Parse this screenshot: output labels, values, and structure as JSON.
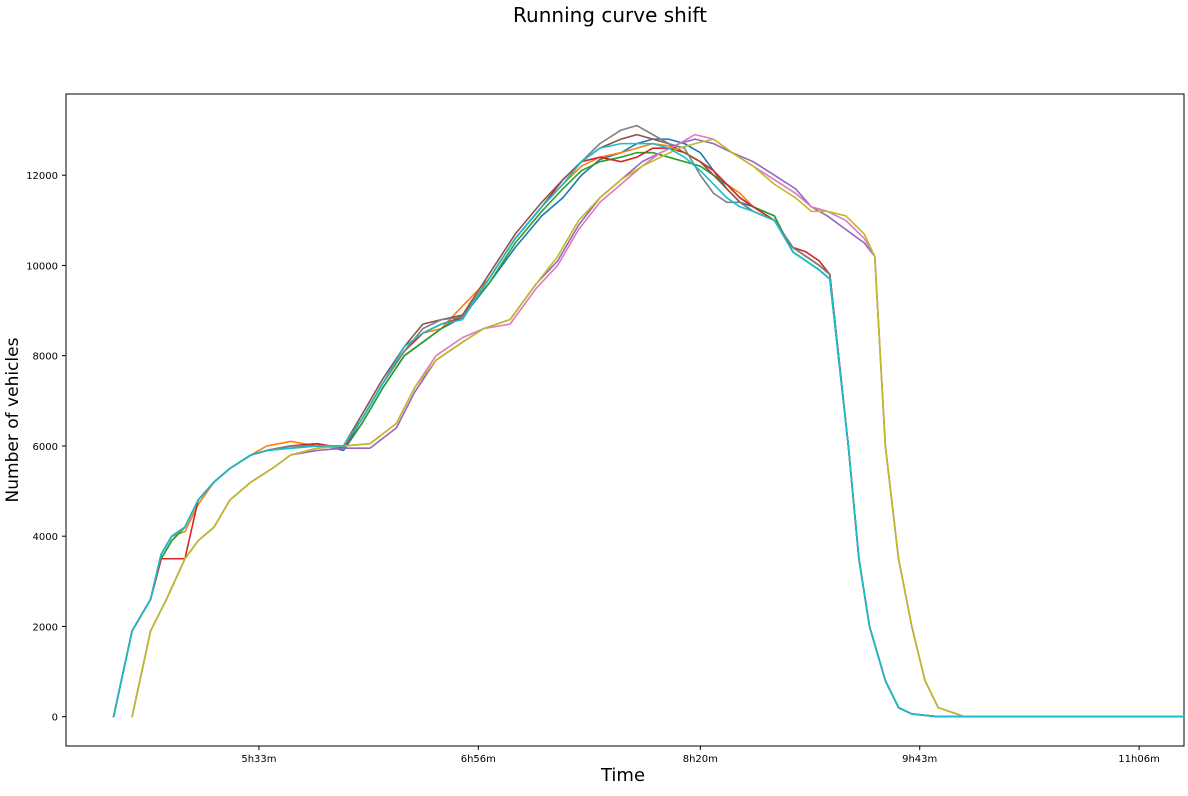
{
  "chart_data": {
    "type": "line",
    "title": "Running curve shift",
    "xlabel": "Time",
    "ylabel": "Number of vehicles",
    "x_ticks": [
      "5h33m",
      "6h56m",
      "8h20m",
      "9h43m",
      "11h06m"
    ],
    "x_tick_minutes": [
      333,
      416,
      500,
      583,
      666
    ],
    "x_range_minutes": [
      260,
      683
    ],
    "y_ticks": [
      0,
      2000,
      4000,
      6000,
      8000,
      10000,
      12000
    ],
    "ylim": [
      -650,
      13800
    ],
    "grid": false,
    "legend": "none",
    "colors": [
      "#1f77b4",
      "#ff7f0e",
      "#2ca02c",
      "#d62728",
      "#9467bd",
      "#8c564b",
      "#e377c2",
      "#7f7f7f",
      "#bcbd22",
      "#17becf"
    ],
    "series": [
      {
        "x": [
          278,
          285,
          292,
          296,
          300,
          305,
          310,
          316,
          322,
          330,
          336,
          345,
          355,
          365,
          372,
          380,
          388,
          395,
          402,
          410,
          420,
          430,
          440,
          448,
          455,
          462,
          470,
          476,
          482,
          488,
          494,
          500,
          505,
          510,
          515,
          520,
          528,
          535,
          540,
          545,
          549,
          556,
          560,
          564,
          570,
          575,
          580,
          590,
          600,
          640,
          683
        ],
        "y": [
          0,
          1900,
          2600,
          3500,
          3900,
          4200,
          4800,
          5200,
          5500,
          5800,
          5900,
          6000,
          6050,
          5900,
          6500,
          7300,
          8000,
          8300,
          8600,
          8850,
          9600,
          10400,
          11100,
          11500,
          12000,
          12350,
          12500,
          12700,
          12800,
          12800,
          12700,
          12500,
          12100,
          11700,
          11400,
          11300,
          11100,
          10300,
          10100,
          9900,
          9700,
          6000,
          3500,
          2000,
          800,
          200,
          60,
          0,
          0,
          0,
          0
        ]
      },
      {
        "x": [
          278,
          285,
          292,
          296,
          300,
          305,
          310,
          316,
          322,
          330,
          336,
          345,
          355,
          365,
          372,
          380,
          388,
          395,
          402,
          410,
          420,
          430,
          440,
          448,
          455,
          462,
          470,
          476,
          482,
          488,
          494,
          500,
          505,
          510,
          515,
          520,
          528,
          535,
          540,
          545,
          549,
          556,
          560,
          564,
          570,
          575,
          580,
          590,
          600,
          640,
          683
        ],
        "y": [
          0,
          1900,
          2600,
          3600,
          4000,
          4100,
          4700,
          5200,
          5500,
          5800,
          6000,
          6100,
          6000,
          6000,
          6600,
          7400,
          8100,
          8500,
          8600,
          9100,
          9700,
          10600,
          11300,
          11800,
          12200,
          12400,
          12500,
          12600,
          12700,
          12650,
          12500,
          12300,
          12000,
          11800,
          11600,
          11300,
          11000,
          10400,
          10200,
          10000,
          9800,
          6000,
          3500,
          2000,
          800,
          200,
          60,
          0,
          0,
          0,
          0
        ]
      },
      {
        "x": [
          278,
          285,
          292,
          296,
          300,
          305,
          310,
          316,
          322,
          330,
          336,
          345,
          355,
          365,
          372,
          380,
          388,
          395,
          402,
          410,
          420,
          430,
          440,
          448,
          455,
          462,
          470,
          476,
          482,
          488,
          494,
          500,
          505,
          510,
          515,
          520,
          528,
          535,
          540,
          545,
          549,
          556,
          560,
          564,
          570,
          575,
          580,
          590,
          600,
          640,
          683
        ],
        "y": [
          0,
          1900,
          2600,
          3500,
          3900,
          4200,
          4800,
          5200,
          5500,
          5800,
          5900,
          5950,
          6000,
          5950,
          6500,
          7300,
          8000,
          8300,
          8600,
          8900,
          9600,
          10500,
          11200,
          11700,
          12100,
          12300,
          12400,
          12500,
          12500,
          12400,
          12300,
          12200,
          12000,
          11800,
          11500,
          11300,
          11100,
          10300,
          10100,
          9900,
          9700,
          6000,
          3500,
          2000,
          800,
          200,
          60,
          0,
          0,
          0,
          0
        ]
      },
      {
        "x": [
          278,
          285,
          292,
          296,
          300,
          305,
          310,
          316,
          322,
          330,
          336,
          345,
          355,
          365,
          372,
          380,
          388,
          395,
          402,
          410,
          420,
          430,
          440,
          448,
          455,
          462,
          470,
          476,
          482,
          488,
          494,
          500,
          505,
          510,
          515,
          520,
          528,
          535,
          540,
          545,
          549,
          556,
          560,
          564,
          570,
          575,
          580,
          590,
          600,
          640,
          683
        ],
        "y": [
          0,
          1900,
          2600,
          3500,
          3500,
          3500,
          4800,
          5200,
          5500,
          5800,
          5900,
          6000,
          6050,
          5950,
          6600,
          7400,
          8100,
          8500,
          8700,
          8850,
          9700,
          10600,
          11300,
          11900,
          12300,
          12400,
          12300,
          12400,
          12600,
          12600,
          12500,
          12300,
          12100,
          11800,
          11500,
          11300,
          11000,
          10400,
          10300,
          10100,
          9800,
          6000,
          3500,
          2000,
          800,
          200,
          60,
          0,
          0,
          0,
          0
        ]
      },
      {
        "x": [
          285,
          292,
          298,
          305,
          310,
          316,
          322,
          330,
          338,
          345,
          355,
          365,
          375,
          385,
          392,
          400,
          410,
          418,
          428,
          438,
          446,
          454,
          462,
          470,
          478,
          485,
          492,
          498,
          505,
          512,
          520,
          528,
          536,
          542,
          548,
          555,
          562,
          566,
          570,
          575,
          580,
          585,
          590,
          600,
          640,
          683
        ],
        "y": [
          0,
          1900,
          2600,
          3500,
          3900,
          4200,
          4800,
          5200,
          5500,
          5800,
          5900,
          5950,
          5950,
          6400,
          7200,
          7900,
          8300,
          8600,
          8800,
          9600,
          10100,
          10900,
          11500,
          11900,
          12300,
          12500,
          12700,
          12800,
          12700,
          12500,
          12300,
          12000,
          11700,
          11300,
          11100,
          10800,
          10500,
          10200,
          6000,
          3500,
          2000,
          800,
          200,
          0,
          0,
          0
        ]
      },
      {
        "x": [
          278,
          285,
          292,
          296,
          300,
          305,
          310,
          316,
          322,
          330,
          336,
          345,
          355,
          365,
          372,
          380,
          388,
          395,
          402,
          410,
          420,
          430,
          440,
          448,
          455,
          462,
          470,
          476,
          482,
          488,
          494,
          500,
          505,
          510,
          515,
          520,
          528,
          535,
          540,
          545,
          549,
          556,
          560,
          564,
          570,
          575,
          580,
          590,
          600,
          640,
          683
        ],
        "y": [
          0,
          1900,
          2600,
          3600,
          4000,
          4200,
          4800,
          5200,
          5500,
          5800,
          5900,
          6000,
          6000,
          6000,
          6700,
          7500,
          8200,
          8700,
          8800,
          8900,
          9800,
          10700,
          11400,
          11900,
          12300,
          12600,
          12800,
          12900,
          12800,
          12700,
          12500,
          12300,
          12000,
          11700,
          11400,
          11200,
          11000,
          10400,
          10200,
          10000,
          9800,
          6000,
          3500,
          2000,
          800,
          200,
          60,
          0,
          0,
          0,
          0
        ]
      },
      {
        "x": [
          285,
          292,
          298,
          305,
          310,
          316,
          322,
          330,
          338,
          345,
          355,
          365,
          375,
          385,
          392,
          400,
          410,
          418,
          428,
          438,
          446,
          454,
          462,
          470,
          478,
          485,
          492,
          498,
          505,
          512,
          520,
          528,
          536,
          542,
          548,
          555,
          562,
          566,
          570,
          575,
          580,
          585,
          590,
          600,
          640,
          683
        ],
        "y": [
          0,
          1900,
          2600,
          3500,
          3900,
          4200,
          4800,
          5200,
          5500,
          5800,
          5950,
          6000,
          6050,
          6500,
          7300,
          8000,
          8400,
          8600,
          8700,
          9500,
          10000,
          10800,
          11400,
          11800,
          12200,
          12500,
          12700,
          12900,
          12800,
          12500,
          12200,
          11900,
          11600,
          11300,
          11200,
          11000,
          10600,
          10200,
          6000,
          3500,
          2000,
          800,
          200,
          0,
          0,
          0
        ]
      },
      {
        "x": [
          278,
          285,
          292,
          296,
          300,
          305,
          310,
          316,
          322,
          330,
          336,
          345,
          355,
          365,
          372,
          380,
          388,
          395,
          402,
          410,
          420,
          430,
          440,
          448,
          455,
          462,
          470,
          476,
          482,
          488,
          494,
          500,
          505,
          510,
          515,
          520,
          528,
          535,
          540,
          545,
          549,
          556,
          560,
          564,
          570,
          575,
          580,
          590,
          600,
          640,
          683
        ],
        "y": [
          0,
          1900,
          2600,
          3600,
          4000,
          4200,
          4800,
          5200,
          5500,
          5800,
          5900,
          6000,
          6000,
          6000,
          6600,
          7400,
          8100,
          8600,
          8800,
          8850,
          9700,
          10600,
          11300,
          11800,
          12300,
          12700,
          13000,
          13100,
          12900,
          12700,
          12600,
          12000,
          11600,
          11400,
          11400,
          11200,
          11000,
          10400,
          10200,
          10000,
          9800,
          6000,
          3500,
          2000,
          800,
          200,
          60,
          0,
          0,
          0,
          0
        ]
      },
      {
        "x": [
          285,
          292,
          298,
          305,
          310,
          316,
          322,
          330,
          338,
          345,
          355,
          365,
          375,
          385,
          392,
          400,
          410,
          418,
          428,
          438,
          446,
          454,
          462,
          470,
          478,
          485,
          492,
          498,
          505,
          512,
          520,
          528,
          536,
          542,
          548,
          555,
          562,
          566,
          570,
          575,
          580,
          585,
          590,
          600,
          640,
          683
        ],
        "y": [
          0,
          1900,
          2600,
          3500,
          3900,
          4200,
          4800,
          5200,
          5500,
          5800,
          5950,
          6000,
          6050,
          6500,
          7300,
          7900,
          8300,
          8600,
          8800,
          9600,
          10200,
          11000,
          11500,
          11900,
          12200,
          12400,
          12600,
          12700,
          12800,
          12500,
          12200,
          11800,
          11500,
          11200,
          11200,
          11100,
          10700,
          10200,
          6000,
          3500,
          2000,
          800,
          200,
          0,
          0,
          0
        ]
      },
      {
        "x": [
          278,
          285,
          292,
          296,
          300,
          305,
          310,
          316,
          322,
          330,
          336,
          345,
          355,
          365,
          372,
          380,
          388,
          395,
          402,
          410,
          420,
          430,
          440,
          448,
          455,
          462,
          470,
          476,
          482,
          488,
          494,
          500,
          505,
          510,
          515,
          520,
          528,
          535,
          540,
          545,
          549,
          556,
          560,
          564,
          570,
          575,
          580,
          590,
          600,
          640,
          683
        ],
        "y": [
          0,
          1900,
          2600,
          3600,
          4000,
          4200,
          4800,
          5200,
          5500,
          5800,
          5900,
          5950,
          6000,
          6000,
          6600,
          7400,
          8200,
          8500,
          8700,
          8800,
          9700,
          10600,
          11300,
          11800,
          12300,
          12600,
          12700,
          12700,
          12700,
          12600,
          12400,
          12100,
          11800,
          11500,
          11300,
          11200,
          11000,
          10300,
          10100,
          9900,
          9700,
          6000,
          3500,
          2000,
          800,
          200,
          60,
          0,
          0,
          0,
          0
        ]
      }
    ]
  }
}
